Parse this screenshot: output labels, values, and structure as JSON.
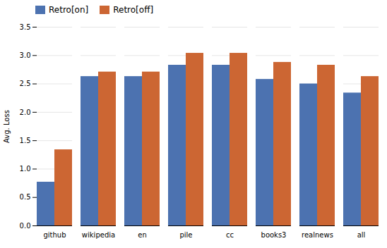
{
  "chart_data": {
    "type": "bar",
    "categories": [
      "github",
      "wikipedia",
      "en",
      "pile",
      "cc",
      "books3",
      "realnews",
      "all"
    ],
    "series": [
      {
        "name": "Retro[on]",
        "color": "#4c72b0",
        "values": [
          0.77,
          2.63,
          2.63,
          2.83,
          2.83,
          2.58,
          2.5,
          2.34
        ]
      },
      {
        "name": "Retro[off]",
        "color": "#cc6633",
        "values": [
          1.34,
          2.71,
          2.71,
          3.04,
          3.04,
          2.88,
          2.83,
          2.63
        ]
      }
    ],
    "ylabel": "Avg. Loss",
    "ylim": [
      0,
      3.5
    ],
    "yticks": [
      {
        "value": 0,
        "label": "0.0"
      },
      0.5,
      {
        "value": 1,
        "label": "1.0"
      },
      1.5,
      {
        "value": 2,
        "label": "2.0"
      },
      2.5,
      {
        "value": 3,
        "label": "3.0"
      },
      3.5
    ],
    "grid": true,
    "legend": "upper left"
  }
}
